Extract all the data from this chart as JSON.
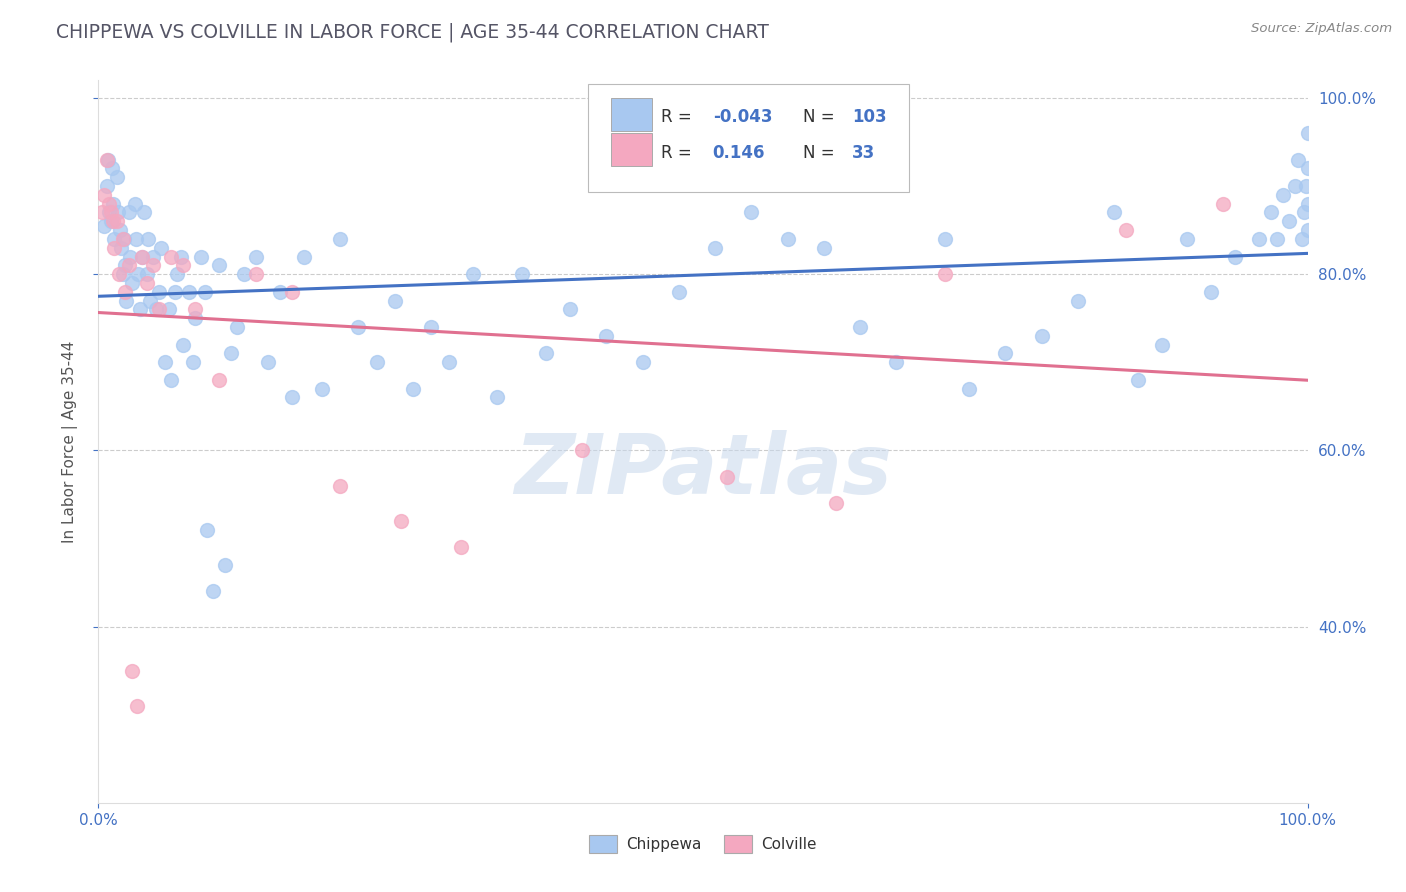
{
  "title": "CHIPPEWA VS COLVILLE IN LABOR FORCE | AGE 35-44 CORRELATION CHART",
  "source": "Source: ZipAtlas.com",
  "ylabel_text": "In Labor Force | Age 35-44",
  "watermark": "ZIPatlas",
  "legend_entries": [
    {
      "label": "Chippewa",
      "R": -0.043,
      "N": 103,
      "color": "#a8c8f0",
      "line_color": "#4472c4"
    },
    {
      "label": "Colville",
      "R": 0.146,
      "N": 33,
      "color": "#f4a8c0",
      "line_color": "#e07090"
    }
  ],
  "chippewa_x": [
    0.005,
    0.007,
    0.008,
    0.009,
    0.01,
    0.011,
    0.012,
    0.013,
    0.015,
    0.016,
    0.018,
    0.019,
    0.02,
    0.021,
    0.022,
    0.023,
    0.025,
    0.026,
    0.028,
    0.03,
    0.031,
    0.033,
    0.034,
    0.036,
    0.038,
    0.04,
    0.041,
    0.043,
    0.045,
    0.048,
    0.05,
    0.052,
    0.055,
    0.058,
    0.06,
    0.063,
    0.065,
    0.068,
    0.07,
    0.075,
    0.078,
    0.08,
    0.085,
    0.088,
    0.09,
    0.095,
    0.1,
    0.105,
    0.11,
    0.115,
    0.12,
    0.13,
    0.14,
    0.15,
    0.16,
    0.17,
    0.185,
    0.2,
    0.215,
    0.23,
    0.245,
    0.26,
    0.275,
    0.29,
    0.31,
    0.33,
    0.35,
    0.37,
    0.39,
    0.42,
    0.45,
    0.48,
    0.51,
    0.54,
    0.57,
    0.6,
    0.63,
    0.66,
    0.7,
    0.72,
    0.75,
    0.78,
    0.81,
    0.84,
    0.86,
    0.88,
    0.9,
    0.92,
    0.94,
    0.96,
    0.97,
    0.975,
    0.98,
    0.985,
    0.99,
    0.992,
    0.995,
    0.997,
    0.999,
    1.0,
    1.0,
    1.0,
    1.0
  ],
  "chippewa_y": [
    0.855,
    0.9,
    0.93,
    0.87,
    0.86,
    0.92,
    0.88,
    0.84,
    0.91,
    0.87,
    0.85,
    0.83,
    0.8,
    0.84,
    0.81,
    0.77,
    0.87,
    0.82,
    0.79,
    0.88,
    0.84,
    0.8,
    0.76,
    0.82,
    0.87,
    0.8,
    0.84,
    0.77,
    0.82,
    0.76,
    0.78,
    0.83,
    0.7,
    0.76,
    0.68,
    0.78,
    0.8,
    0.82,
    0.72,
    0.78,
    0.7,
    0.75,
    0.82,
    0.78,
    0.51,
    0.44,
    0.81,
    0.47,
    0.71,
    0.74,
    0.8,
    0.82,
    0.7,
    0.78,
    0.66,
    0.82,
    0.67,
    0.84,
    0.74,
    0.7,
    0.77,
    0.67,
    0.74,
    0.7,
    0.8,
    0.66,
    0.8,
    0.71,
    0.76,
    0.73,
    0.7,
    0.78,
    0.83,
    0.87,
    0.84,
    0.83,
    0.74,
    0.7,
    0.84,
    0.67,
    0.71,
    0.73,
    0.77,
    0.87,
    0.68,
    0.72,
    0.84,
    0.78,
    0.82,
    0.84,
    0.87,
    0.84,
    0.89,
    0.86,
    0.9,
    0.93,
    0.84,
    0.87,
    0.9,
    0.85,
    0.88,
    0.92,
    0.96
  ],
  "colville_x": [
    0.003,
    0.005,
    0.007,
    0.009,
    0.01,
    0.012,
    0.013,
    0.015,
    0.017,
    0.02,
    0.022,
    0.025,
    0.028,
    0.032,
    0.036,
    0.04,
    0.045,
    0.05,
    0.06,
    0.07,
    0.08,
    0.1,
    0.13,
    0.16,
    0.2,
    0.25,
    0.3,
    0.4,
    0.52,
    0.61,
    0.7,
    0.85,
    0.93
  ],
  "colville_y": [
    0.87,
    0.89,
    0.93,
    0.88,
    0.87,
    0.86,
    0.83,
    0.86,
    0.8,
    0.84,
    0.78,
    0.81,
    0.35,
    0.31,
    0.82,
    0.79,
    0.81,
    0.76,
    0.82,
    0.81,
    0.76,
    0.68,
    0.8,
    0.78,
    0.56,
    0.52,
    0.49,
    0.6,
    0.57,
    0.54,
    0.8,
    0.85,
    0.88
  ],
  "xlim": [
    0.0,
    1.0
  ],
  "ylim": [
    0.2,
    1.02
  ],
  "yticks": [
    0.4,
    0.6,
    0.8,
    1.0
  ],
  "xticks": [
    0.0,
    1.0
  ],
  "chippewa_color": "#a8c8f0",
  "colville_color": "#f4a8c0",
  "chippewa_line_color": "#4472c4",
  "colville_line_color": "#e07090",
  "background_color": "#ffffff",
  "grid_color": "#cccccc",
  "watermark_color": "#c8d8ec",
  "axis_label_color": "#4472c4",
  "source_color": "#888888",
  "title_color": "#555566"
}
